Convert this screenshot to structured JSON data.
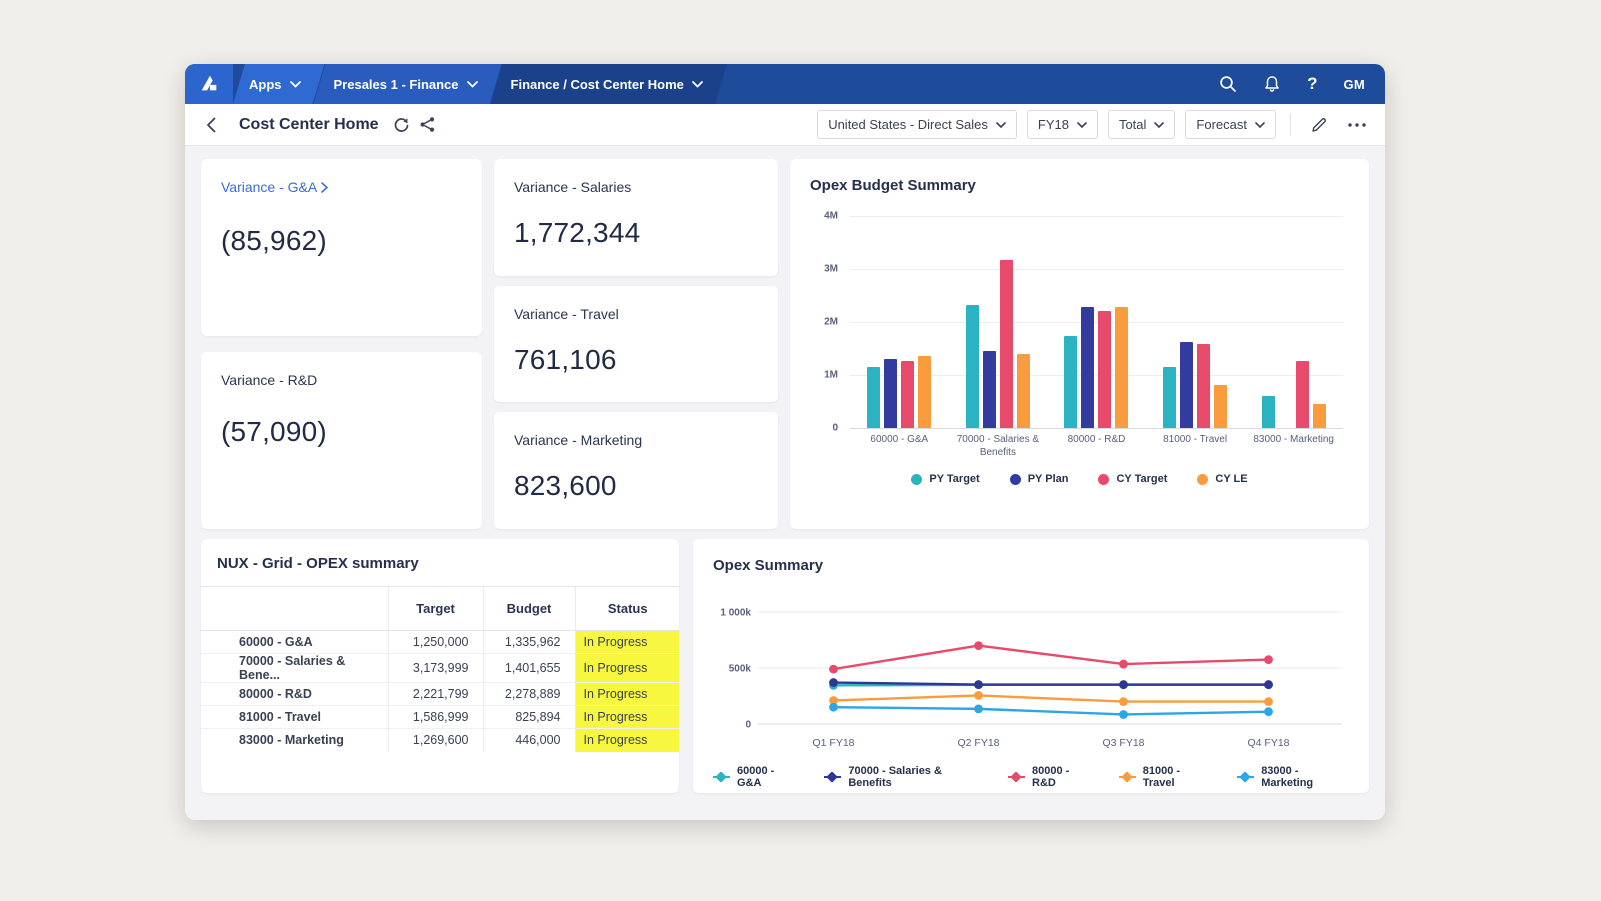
{
  "nav": {
    "apps_label": "Apps",
    "workspace_label": "Presales 1 - Finance",
    "page_label": "Finance / Cost Center Home",
    "help_label": "?",
    "avatar_initials": "GM"
  },
  "header": {
    "title": "Cost Center Home",
    "selectors": [
      {
        "label": "United States - Direct Sales"
      },
      {
        "label": "FY18"
      },
      {
        "label": "Total"
      },
      {
        "label": "Forecast"
      }
    ]
  },
  "kpis": {
    "gna": {
      "title": "Variance - G&A",
      "value": "(85,962)"
    },
    "rnd": {
      "title": "Variance - R&D",
      "value": "(57,090)"
    },
    "salaries": {
      "title": "Variance - Salaries",
      "value": "1,772,344"
    },
    "travel": {
      "title": "Variance - Travel",
      "value": "761,106"
    },
    "marketing": {
      "title": "Variance - Marketing",
      "value": "823,600"
    }
  },
  "table": {
    "title": "NUX - Grid - OPEX summary",
    "columns": [
      "",
      "Target",
      "Budget",
      "Status"
    ],
    "status_bg": "#F7F73F",
    "rows": [
      {
        "label": "60000 - G&A",
        "target": "1,250,000",
        "budget": "1,335,962",
        "status": "In Progress"
      },
      {
        "label": "70000 - Salaries & Bene...",
        "target": "3,173,999",
        "budget": "1,401,655",
        "status": "In Progress"
      },
      {
        "label": "80000 - R&D",
        "target": "2,221,799",
        "budget": "2,278,889",
        "status": "In Progress"
      },
      {
        "label": "81000 - Travel",
        "target": "1,586,999",
        "budget": "825,894",
        "status": "In Progress"
      },
      {
        "label": "83000 - Marketing",
        "target": "1,269,600",
        "budget": "446,000",
        "status": "In Progress"
      }
    ]
  },
  "chart_data": [
    {
      "type": "bar",
      "title": "Opex Budget Summary",
      "categories": [
        "60000 - G&A",
        "70000 - Salaries & Benefits",
        "80000 - R&D",
        "81000 - Travel",
        "83000 - Marketing"
      ],
      "series": [
        {
          "name": "PY Target",
          "color": "#2BB3C2",
          "values": [
            1150000,
            2320000,
            1730000,
            1150000,
            600000
          ]
        },
        {
          "name": "PY Plan",
          "color": "#343B9E",
          "values": [
            1300000,
            1450000,
            2280000,
            1620000,
            0
          ]
        },
        {
          "name": "CY Target",
          "color": "#E84A6C",
          "values": [
            1270000,
            3170000,
            2200000,
            1580000,
            1270000
          ]
        },
        {
          "name": "CY LE",
          "color": "#F89C3D",
          "values": [
            1350000,
            1400000,
            2280000,
            810000,
            450000
          ]
        }
      ],
      "ylim": [
        0,
        4000000
      ],
      "yticks": [
        "4M",
        "3M",
        "2M",
        "1M",
        "0"
      ],
      "grid": true,
      "legend_position": "bottom"
    },
    {
      "type": "line",
      "title": "Opex Summary",
      "x": [
        "Q1 FY18",
        "Q2 FY18",
        "Q3 FY18",
        "Q4 FY18"
      ],
      "series": [
        {
          "name": "60000 - G&A",
          "color": "#2BB3C2",
          "values": [
            345000,
            350000,
            350000,
            350000
          ]
        },
        {
          "name": "70000 - Salaries & Benefits",
          "color": "#2F3693",
          "values": [
            370000,
            352000,
            352000,
            352000
          ]
        },
        {
          "name": "80000 - R&D",
          "color": "#E84A6C",
          "values": [
            490000,
            700000,
            535000,
            575000
          ]
        },
        {
          "name": "81000 - Travel",
          "color": "#F89C3D",
          "values": [
            210000,
            255000,
            200000,
            200000
          ]
        },
        {
          "name": "83000 - Marketing",
          "color": "#2BA6E8",
          "values": [
            150000,
            135000,
            85000,
            110000
          ]
        }
      ],
      "ylim": [
        0,
        1000000
      ],
      "yticks": [
        "1 000k",
        "500k",
        "0"
      ],
      "grid": true,
      "legend_position": "bottom"
    }
  ]
}
